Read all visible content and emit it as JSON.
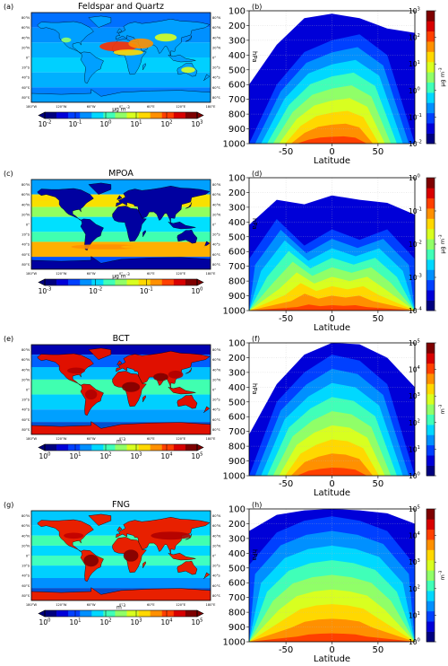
{
  "figure": {
    "rows": [
      {
        "map": {
          "letter": "(a)",
          "title": "Feldspar and Quartz",
          "cb_ticks": [
            "10^-2",
            "10^-1",
            "10^0",
            "10^1",
            "10^2",
            "10^3"
          ],
          "cb_unit": "µg m^-3"
        },
        "profile": {
          "letter": "(b)",
          "cb_ticks": [
            "10^-2",
            "10^-1",
            "10^0",
            "10^1",
            "10^2",
            "10^3"
          ],
          "cb_unit": "µg m^-3"
        }
      },
      {
        "map": {
          "letter": "(c)",
          "title": "MPOA",
          "cb_ticks": [
            "10^-3",
            "10^-2",
            "10^-1",
            "10^0"
          ],
          "cb_unit": "µg m^-3"
        },
        "profile": {
          "letter": "(d)",
          "cb_ticks": [
            "10^-4",
            "10^-3",
            "10^-2",
            "10^-1",
            "10^0"
          ],
          "cb_unit": "µg m^-3"
        }
      },
      {
        "map": {
          "letter": "(e)",
          "title": "BCT",
          "cb_ticks": [
            "10^0",
            "10^1",
            "10^2",
            "10^3",
            "10^4",
            "10^5"
          ],
          "cb_unit": "m^-3"
        },
        "profile": {
          "letter": "(f)",
          "cb_ticks": [
            "10^0",
            "10^1",
            "10^2",
            "10^3",
            "10^4",
            "10^5"
          ],
          "cb_unit": "m^-3"
        }
      },
      {
        "map": {
          "letter": "(g)",
          "title": "FNG",
          "cb_ticks": [
            "10^0",
            "10^1",
            "10^2",
            "10^3",
            "10^4",
            "10^5"
          ],
          "cb_unit": "m^-3"
        },
        "profile": {
          "letter": "(h)",
          "cb_ticks": [
            "10^0",
            "10^1",
            "10^2",
            "10^3",
            "10^4",
            "10^5"
          ],
          "cb_unit": "m^-3"
        }
      }
    ],
    "map_lon_ticks": [
      "180°W",
      "120°W",
      "60°W",
      "0°",
      "60°E",
      "120°E",
      "180°E"
    ],
    "map_lat_ticks": [
      "80°N",
      "60°N",
      "40°N",
      "20°N",
      "0°",
      "20°S",
      "40°S",
      "60°S",
      "80°S"
    ],
    "profile_y_label": "hPa",
    "profile_x_label": "Latitude",
    "profile_x_ticks": [
      "-50",
      "0",
      "50"
    ],
    "profile_y_ticks": [
      "100",
      "200",
      "300",
      "400",
      "500",
      "600",
      "700",
      "800",
      "900",
      "1000"
    ]
  },
  "chart_data": [
    {
      "type": "heatmap",
      "panel": "a",
      "title": "Feldspar and Quartz",
      "x_axis": "longitude",
      "xlim": [
        -180,
        180
      ],
      "ylim": [
        -90,
        90
      ],
      "colorbar": {
        "scale": "log",
        "range": [
          0.01,
          1000
        ],
        "unit": "µg m^-3",
        "extend": "both"
      }
    },
    {
      "type": "heatmap",
      "panel": "b",
      "x_axis": "Latitude",
      "y_axis": "hPa",
      "xlim": [
        -90,
        90
      ],
      "ylim": [
        1000,
        100
      ],
      "colorbar": {
        "scale": "log",
        "range": [
          0.01,
          1000
        ],
        "unit": "µg m^-3"
      },
      "contour_top_hpa": {
        "latitude": [
          -90,
          -60,
          -30,
          0,
          30,
          60,
          90
        ],
        "levels": [
          [
            600,
            330,
            150,
            120,
            150,
            220,
            250
          ],
          [
            1000,
            600,
            380,
            300,
            260,
            400,
            1000
          ]
        ]
      }
    },
    {
      "type": "heatmap",
      "panel": "c",
      "title": "MPOA",
      "x_axis": "longitude",
      "xlim": [
        -180,
        180
      ],
      "ylim": [
        -90,
        90
      ],
      "colorbar": {
        "scale": "log",
        "range": [
          0.001,
          1
        ],
        "unit": "µg m^-3",
        "extend": "both"
      }
    },
    {
      "type": "heatmap",
      "panel": "d",
      "x_axis": "Latitude",
      "y_axis": "hPa",
      "xlim": [
        -90,
        90
      ],
      "ylim": [
        1000,
        100
      ],
      "colorbar": {
        "scale": "log",
        "range": [
          0.0001,
          1
        ],
        "unit": "µg m^-3"
      },
      "contour_top_hpa": {
        "latitude": [
          -90,
          -60,
          -30,
          0,
          30,
          60,
          90
        ],
        "levels": [
          [
            420,
            250,
            280,
            220,
            250,
            270,
            350
          ],
          [
            650,
            380,
            560,
            450,
            520,
            450,
            650
          ]
        ]
      }
    },
    {
      "type": "heatmap",
      "panel": "e",
      "title": "BCT",
      "x_axis": "longitude",
      "xlim": [
        -180,
        180
      ],
      "ylim": [
        -90,
        90
      ],
      "colorbar": {
        "scale": "log",
        "range": [
          1,
          100000
        ],
        "unit": "m^-3",
        "extend": "both"
      }
    },
    {
      "type": "heatmap",
      "panel": "f",
      "x_axis": "Latitude",
      "y_axis": "hPa",
      "xlim": [
        -90,
        90
      ],
      "ylim": [
        1000,
        100
      ],
      "colorbar": {
        "scale": "log",
        "range": [
          1,
          100000
        ],
        "unit": "m^-3"
      },
      "contour_top_hpa": {
        "latitude": [
          -90,
          -60,
          -30,
          0,
          30,
          60,
          90
        ],
        "levels": [
          [
            720,
            380,
            180,
            100,
            110,
            200,
            400
          ],
          [
            1000,
            500,
            300,
            180,
            220,
            380,
            1000
          ]
        ]
      }
    },
    {
      "type": "heatmap",
      "panel": "g",
      "title": "FNG",
      "x_axis": "longitude",
      "xlim": [
        -180,
        180
      ],
      "ylim": [
        -90,
        90
      ],
      "colorbar": {
        "scale": "log",
        "range": [
          1,
          100000
        ],
        "unit": "m^-3",
        "extend": "both"
      }
    },
    {
      "type": "heatmap",
      "panel": "h",
      "x_axis": "Latitude",
      "y_axis": "hPa",
      "xlim": [
        -90,
        90
      ],
      "ylim": [
        1000,
        100
      ],
      "colorbar": {
        "scale": "log",
        "range": [
          1,
          100000
        ],
        "unit": "m^-3"
      },
      "contour_top_hpa": {
        "latitude": [
          -90,
          -60,
          -30,
          0,
          30,
          60,
          90
        ],
        "levels": [
          [
            250,
            140,
            110,
            100,
            110,
            130,
            200
          ],
          [
            480,
            260,
            180,
            150,
            180,
            250,
            480
          ]
        ]
      }
    }
  ]
}
